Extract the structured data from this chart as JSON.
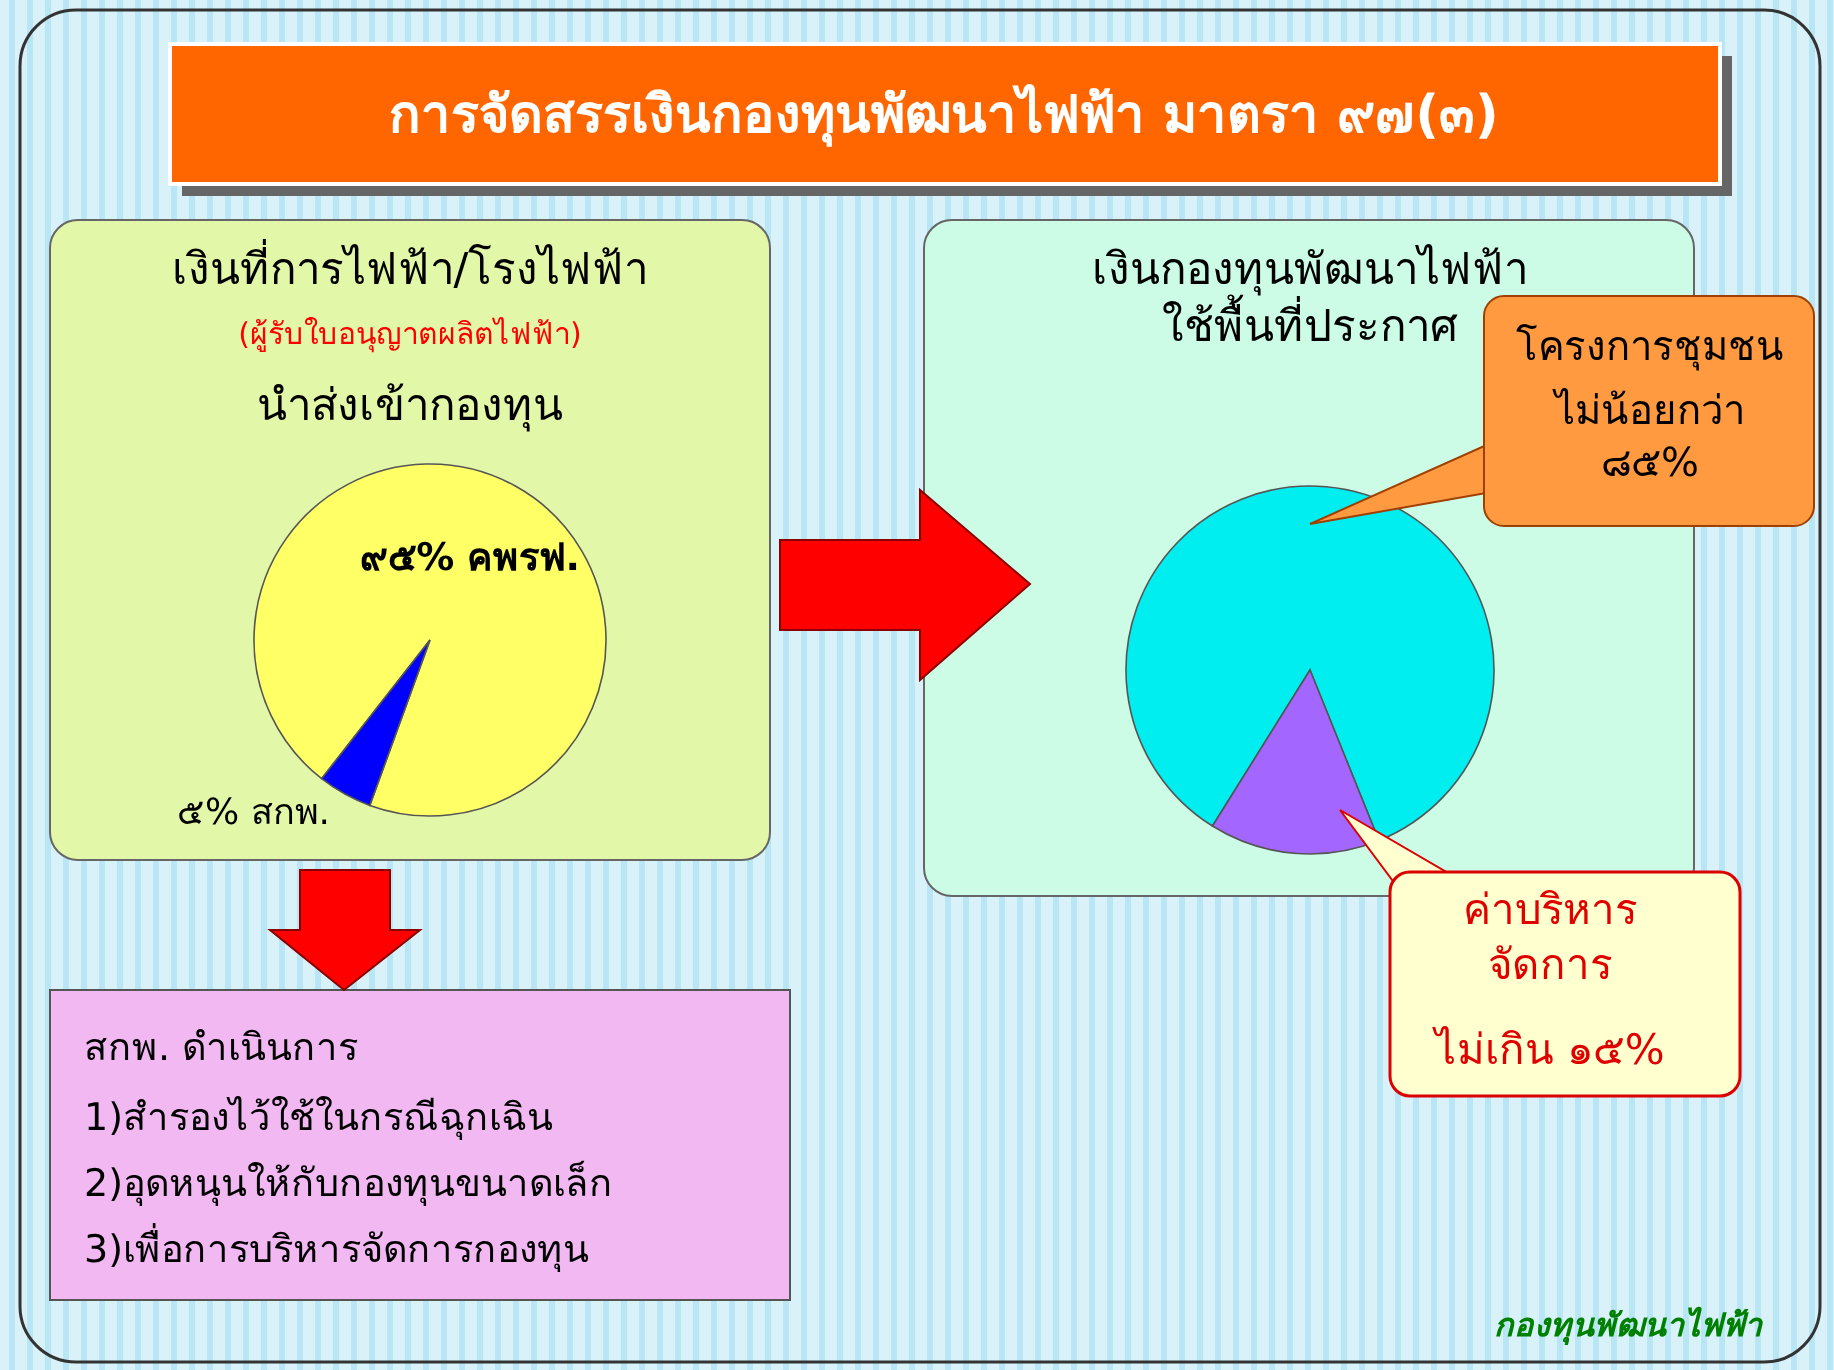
{
  "chart_data": [
    {
      "type": "other",
      "title": "การจัดสรรเงินกองทุนพัฒนาไฟฟ้า มาตรา ๙๗(๓)",
      "annotations": [
        "กองทุนพัฒนาไฟฟ้า"
      ]
    },
    {
      "type": "pie",
      "title": "เงินที่การไฟฟ้า/โรงไฟฟ้า",
      "subtitle": "(ผู้รับใบอนุญาตผลิตไฟฟ้า)",
      "annotations": [
        "นำส่งเข้ากองทุน"
      ],
      "categories": [
        "คพรฟ.",
        "สกพ."
      ],
      "values": [
        95,
        5
      ],
      "colors": [
        "#ffff66",
        "#0000ff"
      ],
      "value_labels": [
        "๙๕%",
        "๕%"
      ]
    },
    {
      "type": "pie",
      "title": "เงินกองทุนพัฒนาไฟฟ้า\nใช้พื้นที่ประกาศ",
      "categories": [
        "โครงการชุมชน",
        "ค่าบริหาร\nจัดการ"
      ],
      "values": [
        85,
        15
      ],
      "colors": [
        "#00eef0",
        "#a366ff"
      ],
      "value_labels": [
        "ไม่น้อยกว่า\n๘๕%",
        "ไม่เกิน ๑๕%"
      ]
    },
    {
      "type": "other",
      "title": "สกพ. ดำเนินการ",
      "annotations": [
        "1)สำรองไว้ใช้ในกรณีฉุกเฉิน",
        "2)อุดหนุนให้กับกองทุนขนาดเล็ก",
        "3)เพื่อการบริหารจัดการกองทุน"
      ]
    }
  ]
}
